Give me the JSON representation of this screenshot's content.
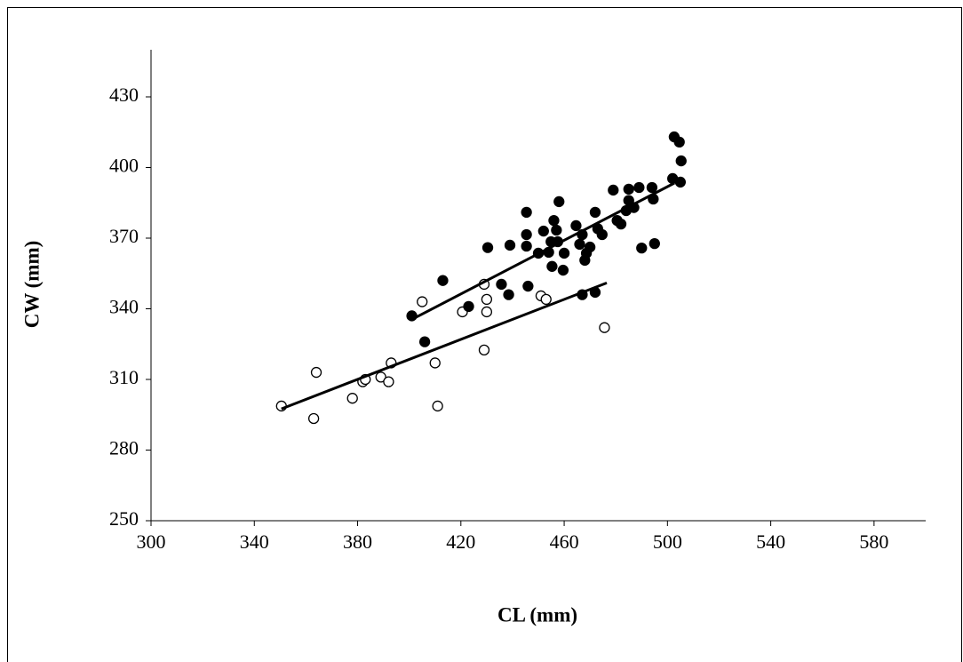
{
  "chart_data": {
    "type": "scatter",
    "x_label": "CL (mm)",
    "y_label": "CW (mm)",
    "xlim": [
      300,
      600
    ],
    "xticks": [
      300,
      340,
      380,
      420,
      460,
      500,
      540,
      580
    ],
    "ylim": [
      250,
      450
    ],
    "yticks": [
      250,
      280,
      310,
      340,
      370,
      400,
      430
    ],
    "grid": false,
    "series": [
      {
        "color": "#000000",
        "marker": "open",
        "x": [
          350.5,
          364,
          363,
          378,
          382,
          383,
          389,
          392,
          393,
          405,
          410,
          411,
          420.6,
          429,
          430,
          430,
          429,
          451,
          453,
          475.6
        ],
        "values": [
          298.7,
          313,
          293.4,
          302,
          309,
          310,
          311,
          309,
          317,
          343,
          317,
          298.7,
          338.7,
          350.4,
          344,
          338.7,
          322.5,
          345.5,
          344,
          332
        ]
      },
      {
        "color": "#000000",
        "marker": "filled",
        "x": [
          401,
          406,
          413,
          423,
          430.4,
          435.7,
          438.5,
          439,
          445.4,
          445.4,
          445.4,
          446,
          450,
          452,
          454,
          454.9,
          456,
          455.3,
          457,
          458,
          457.5,
          459.6,
          460,
          464.6,
          466,
          467,
          468,
          468.6,
          470,
          472,
          467,
          472,
          473,
          474.7,
          479,
          480.5,
          482,
          484,
          485,
          485,
          487,
          489,
          490,
          494,
          494.5,
          495,
          502,
          502.6,
          504.6,
          505,
          505.3
        ],
        "values": [
          337,
          326,
          352,
          341,
          366,
          350.4,
          346,
          367,
          381,
          371.5,
          366.6,
          349.6,
          363.6,
          373,
          364,
          368.5,
          377.5,
          358,
          373.4,
          385.5,
          368.5,
          356.4,
          363.6,
          375.3,
          367.4,
          371.5,
          360.6,
          363.6,
          366.2,
          381,
          346,
          347,
          374,
          371.5,
          390.4,
          377.5,
          376,
          381.7,
          390.8,
          386,
          383,
          391.5,
          365.8,
          391.5,
          386.6,
          367.7,
          395.3,
          413,
          410.8,
          393.8,
          402.8
        ]
      }
    ],
    "trend_lines": [
      {
        "color": "#000000",
        "x": [
          350.5,
          476.5
        ],
        "y": [
          297.5,
          351
        ]
      },
      {
        "color": "#000000",
        "x": [
          400.7,
          502.7
        ],
        "y": [
          335.3,
          393.4
        ]
      }
    ]
  }
}
